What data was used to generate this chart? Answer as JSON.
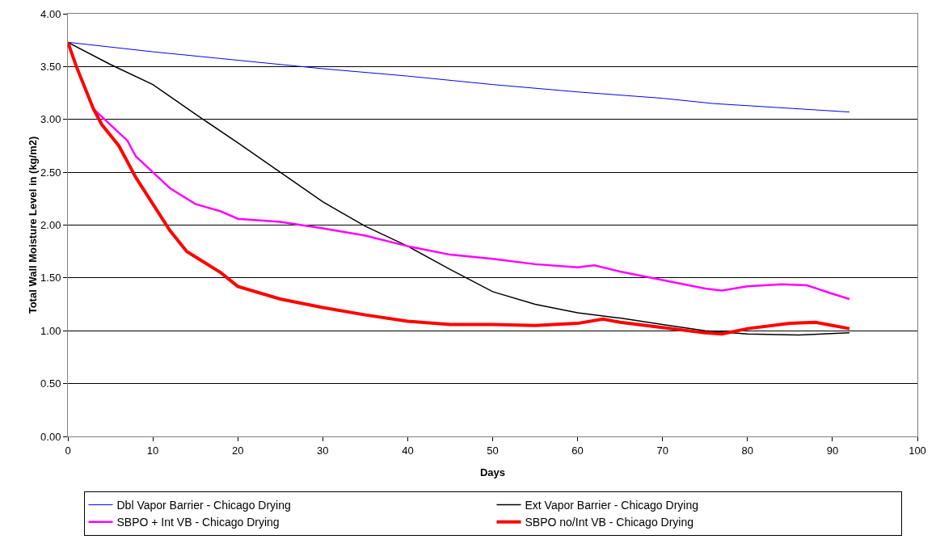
{
  "chart_data": {
    "type": "line",
    "xlabel": "Days",
    "ylabel": "Total Wall Moisture Level in (kg/m2)",
    "xlim": [
      0,
      100
    ],
    "xticks": [
      0,
      10,
      20,
      30,
      40,
      50,
      60,
      70,
      80,
      90,
      100
    ],
    "ylim": [
      0,
      4
    ],
    "yticks": [
      {
        "value": 0,
        "label": "0.00"
      },
      {
        "value": 0.5,
        "label": "0.50"
      },
      {
        "value": 1,
        "label": "1.00"
      },
      {
        "value": 1.5,
        "label": "1.50"
      },
      {
        "value": 2,
        "label": "2.00"
      },
      {
        "value": 2.5,
        "label": "2.50"
      },
      {
        "value": 3,
        "label": "3.00"
      },
      {
        "value": 3.5,
        "label": "3.50"
      },
      {
        "value": 4,
        "label": "4.00"
      }
    ],
    "grid": "y",
    "legend": "bottom",
    "marker": "none",
    "series": [
      {
        "name": "Dbl Vapor Barrier - Chicago Drying",
        "color": "#0000ff",
        "x": [
          0,
          10,
          20,
          30,
          40,
          50,
          60,
          70,
          76,
          92
        ],
        "values": [
          3.73,
          3.64,
          3.56,
          3.48,
          3.41,
          3.33,
          3.26,
          3.2,
          3.15,
          3.07
        ]
      },
      {
        "name": "Ext Vapor Barrier - Chicago Drying",
        "color": "#000000",
        "x": [
          0,
          5,
          10,
          15,
          20,
          25,
          30,
          35,
          40,
          45,
          50,
          55,
          60,
          65,
          70,
          75,
          80,
          86,
          92
        ],
        "values": [
          3.73,
          3.52,
          3.33,
          3.05,
          2.78,
          2.5,
          2.22,
          1.99,
          1.8,
          1.58,
          1.37,
          1.25,
          1.17,
          1.12,
          1.06,
          1.0,
          0.97,
          0.96,
          0.98
        ]
      },
      {
        "name": "SBPO + Int VB - Chicago Drying",
        "color": "#ff00ff",
        "x": [
          3,
          5,
          7,
          8,
          10,
          12,
          15,
          18,
          20,
          25,
          30,
          35,
          40,
          45,
          50,
          55,
          60,
          62,
          65,
          70,
          75,
          77,
          80,
          84,
          87,
          90,
          92
        ],
        "values": [
          3.1,
          2.95,
          2.8,
          2.65,
          2.5,
          2.35,
          2.2,
          2.13,
          2.06,
          2.03,
          1.97,
          1.9,
          1.8,
          1.72,
          1.68,
          1.63,
          1.6,
          1.62,
          1.56,
          1.48,
          1.4,
          1.38,
          1.42,
          1.44,
          1.43,
          1.35,
          1.3
        ]
      },
      {
        "name": "SBPO no/Int VB - Chicago Drying",
        "color": "#ff0000",
        "x": [
          0,
          1,
          2,
          3,
          4,
          5,
          6,
          7,
          8,
          10,
          12,
          14,
          16,
          18,
          20,
          25,
          30,
          35,
          40,
          45,
          50,
          55,
          60,
          63,
          65,
          70,
          75,
          77,
          80,
          85,
          88,
          92
        ],
        "values": [
          3.73,
          3.5,
          3.3,
          3.1,
          2.95,
          2.85,
          2.75,
          2.6,
          2.45,
          2.2,
          1.95,
          1.75,
          1.65,
          1.55,
          1.42,
          1.3,
          1.22,
          1.15,
          1.09,
          1.06,
          1.06,
          1.05,
          1.07,
          1.11,
          1.08,
          1.03,
          0.98,
          0.97,
          1.02,
          1.07,
          1.08,
          1.02
        ]
      }
    ]
  }
}
